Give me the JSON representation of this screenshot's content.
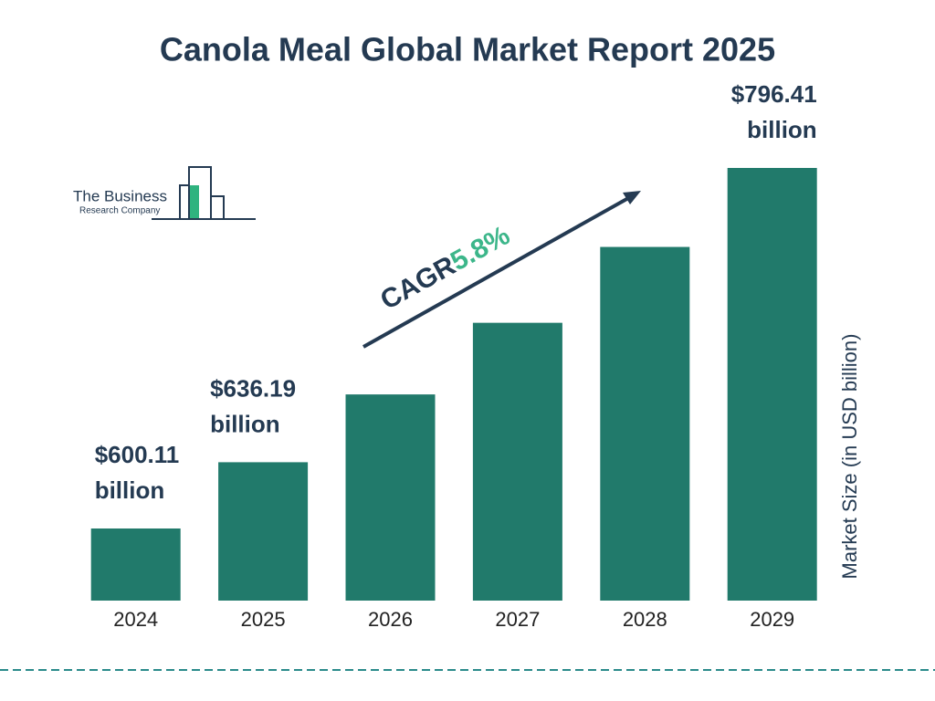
{
  "logo": {
    "line1": "The Business",
    "line2": "Research Company"
  },
  "chart_data": {
    "type": "bar",
    "title": "Canola Meal Global Market Report 2025",
    "y_label": "Market Size (in USD billion)",
    "categories": [
      "2024",
      "2025",
      "2026",
      "2027",
      "2028",
      "2029"
    ],
    "values": [
      600.11,
      636.19,
      673.1,
      712.1,
      753.4,
      796.41
    ],
    "value_labels": [
      "$600.11 billion",
      "$636.19 billion",
      null,
      null,
      null,
      "$796.41 billion"
    ],
    "color": "#217a6b",
    "annotations": {
      "cagr_label": "CAGR",
      "cagr_value": "5.8%"
    }
  }
}
